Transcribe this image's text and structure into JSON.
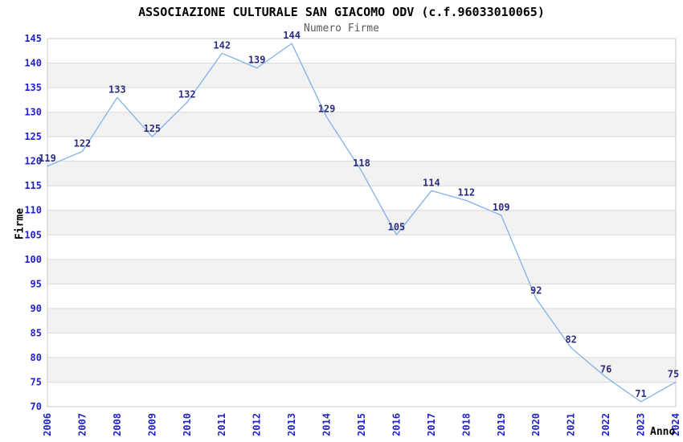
{
  "chart_data": {
    "type": "line",
    "title": "ASSOCIAZIONE CULTURALE SAN GIACOMO ODV (c.f.96033010065)",
    "subtitle": "Numero Firme",
    "xlabel": "Anno",
    "ylabel": "Firme",
    "categories": [
      "2006",
      "2007",
      "2008",
      "2009",
      "2010",
      "2011",
      "2012",
      "2013",
      "2014",
      "2015",
      "2016",
      "2017",
      "2018",
      "2019",
      "2020",
      "2021",
      "2022",
      "2023",
      "2024"
    ],
    "values": [
      119,
      122,
      133,
      125,
      132,
      142,
      139,
      144,
      129,
      118,
      105,
      114,
      112,
      109,
      92,
      82,
      76,
      71,
      75
    ],
    "ylim": [
      70,
      145
    ],
    "ytick_step": 5,
    "legend": "none",
    "grid": "horizontal-lines-with-alternating-bands",
    "point_markers": "none",
    "data_labels": "above-points",
    "x_tick_rotation_deg": -90,
    "colors": {
      "line": "#7FB2E8",
      "tick_label": "#2222CC",
      "data_label": "#2D2D7F",
      "title": "#000000",
      "subtitle": "#595959",
      "band": "#F2F2F2",
      "gridline": "#DCDCDC",
      "border": "#C8C8C8",
      "background": "#FFFFFF"
    }
  }
}
